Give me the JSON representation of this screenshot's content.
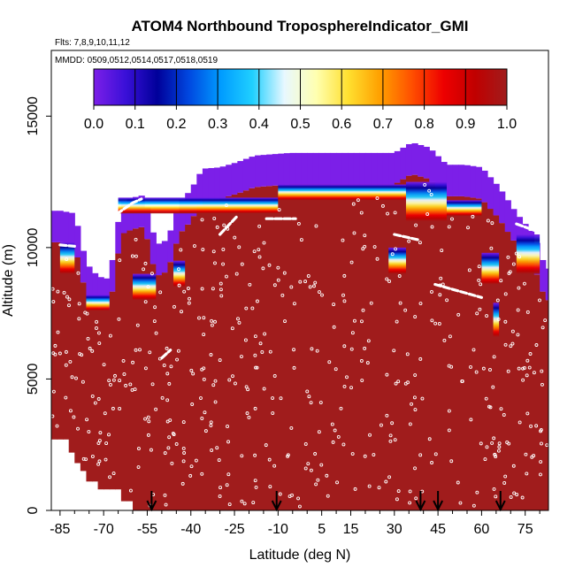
{
  "chart_data": {
    "type": "heatmap",
    "title": "ATOM4 Northbound TroposphereIndicator_GMI",
    "flights_label": "Flts: 7,8,9,10,11,12",
    "dates_label": "MMDD: 0509,0512,0514,0517,0518,0519",
    "xlabel": "Latitude (deg N)",
    "ylabel": "Altitude (m)",
    "xlim": [
      -88,
      83
    ],
    "ylim": [
      0,
      17500
    ],
    "x_ticks": [
      -85,
      -70,
      -55,
      -40,
      -25,
      -10,
      5,
      15,
      30,
      45,
      60,
      75
    ],
    "x_tick_labels": [
      "-85",
      "-70",
      "-55",
      "-40",
      "-25",
      "-10",
      "5",
      "15",
      "30",
      "45",
      "60",
      "75"
    ],
    "y_ticks": [
      0,
      5000,
      10000,
      15000
    ],
    "y_tick_labels": [
      "0",
      "5000",
      "10000",
      "15000"
    ],
    "colorbar": {
      "min": 0.0,
      "max": 1.0,
      "tick_values": [
        0.0,
        0.1,
        0.2,
        0.3,
        0.4,
        0.5,
        0.6,
        0.7,
        0.8,
        0.9,
        1.0
      ],
      "tick_labels": [
        "0.0",
        "0.1",
        "0.2",
        "0.3",
        "0.4",
        "0.5",
        "0.6",
        "0.7",
        "0.8",
        "0.9",
        "1.0"
      ],
      "colors": [
        "#7c1fe8",
        "#3a10d8",
        "#00009a",
        "#0048e0",
        "#009cff",
        "#20d0ff",
        "#e8f8ff",
        "#ffffb0",
        "#ffe030",
        "#ffa000",
        "#ff5000",
        "#ee0000",
        "#c00000",
        "#a01c1c"
      ]
    },
    "troposphere_top_profile": {
      "latitude": [
        -85,
        -80,
        -76,
        -72,
        -68,
        -64,
        -60,
        -56,
        -52,
        -48,
        -44,
        -40,
        -36,
        -30,
        -24,
        -18,
        -12,
        -6,
        0,
        6,
        12,
        18,
        24,
        30,
        36,
        42,
        48,
        54,
        60,
        66,
        72,
        78,
        82
      ],
      "altitude_m": [
        10200,
        10100,
        8200,
        7700,
        7600,
        10500,
        10700,
        10800,
        8900,
        9100,
        10500,
        11000,
        11800,
        11850,
        12050,
        12300,
        12350,
        12400,
        12400,
        12400,
        12400,
        12400,
        12400,
        12400,
        12800,
        12600,
        11950,
        11950,
        11850,
        11100,
        10100,
        9300,
        8000
      ],
      "value_above": 0.0,
      "value_below": 1.0
    },
    "measurement_arrows_latitude": [
      -53.5,
      -10.5,
      39,
      45,
      66.5
    ]
  }
}
